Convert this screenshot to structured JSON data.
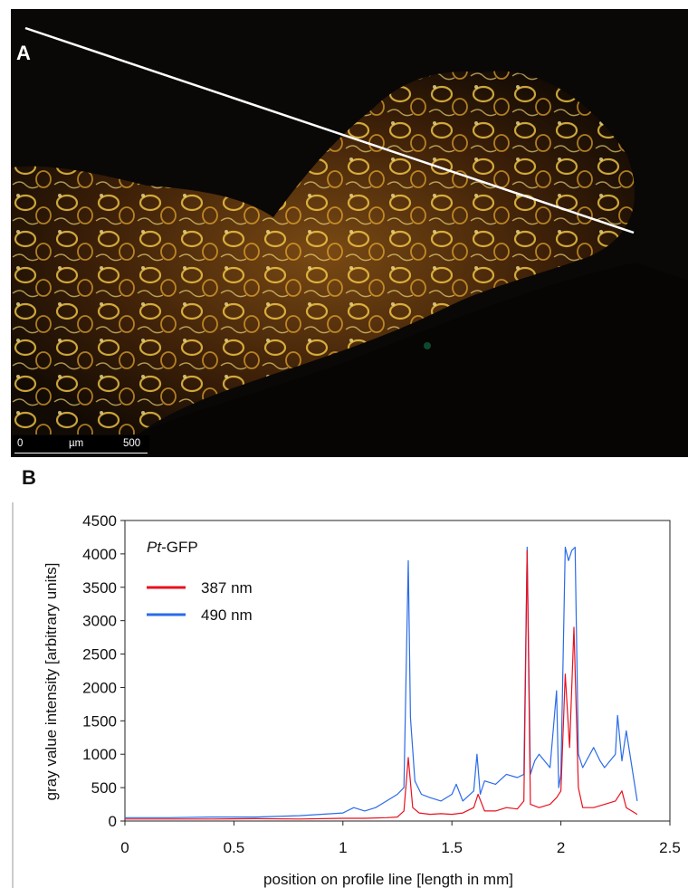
{
  "panel_a": {
    "letter": "A",
    "scale_bar": {
      "start": "0",
      "unit": "µm",
      "end": "500"
    }
  },
  "panel_b": {
    "letter": "B"
  },
  "colors": {
    "series_387": "#e8101e",
    "series_490": "#2a6be8",
    "profile_line": "#ffffff"
  },
  "chart_data": {
    "type": "line",
    "annotation": "Pt-GFP",
    "annotation_italic_part": "Pt",
    "annotation_rest": "-GFP",
    "xlabel": "position on profile line  [length in mm]",
    "ylabel": "gray value intensity [arbitrary units]",
    "xlim": [
      0,
      2.5
    ],
    "ylim": [
      0,
      4500
    ],
    "xticks": [
      0,
      0.5,
      1,
      1.5,
      2,
      2.5
    ],
    "xtick_labels": [
      "0",
      "0.5",
      "1",
      "1.5",
      "2",
      "2.5"
    ],
    "yticks": [
      0,
      500,
      1000,
      1500,
      2000,
      2500,
      3000,
      3500,
      4000,
      4500
    ],
    "ytick_labels": [
      "0",
      "500",
      "1000",
      "1500",
      "2000",
      "2500",
      "3000",
      "3500",
      "4000",
      "4500"
    ],
    "legend_position": "left",
    "series": [
      {
        "name": "387 nm",
        "color": "#e8101e",
        "x": [
          0,
          0.2,
          0.4,
          0.6,
          0.8,
          1.0,
          1.1,
          1.2,
          1.25,
          1.28,
          1.3,
          1.32,
          1.35,
          1.4,
          1.45,
          1.5,
          1.55,
          1.6,
          1.62,
          1.65,
          1.7,
          1.75,
          1.8,
          1.83,
          1.845,
          1.86,
          1.9,
          1.95,
          1.98,
          2.0,
          2.02,
          2.04,
          2.06,
          2.08,
          2.1,
          2.15,
          2.2,
          2.25,
          2.28,
          2.3,
          2.35
        ],
        "y": [
          30,
          30,
          30,
          35,
          30,
          40,
          40,
          50,
          60,
          150,
          950,
          200,
          120,
          100,
          110,
          100,
          120,
          200,
          400,
          150,
          150,
          200,
          180,
          300,
          4050,
          250,
          200,
          250,
          350,
          450,
          2200,
          1100,
          2900,
          500,
          200,
          200,
          250,
          300,
          450,
          200,
          100
        ]
      },
      {
        "name": "490 nm",
        "color": "#2a6be8",
        "x": [
          0,
          0.2,
          0.4,
          0.6,
          0.8,
          1.0,
          1.05,
          1.1,
          1.15,
          1.2,
          1.25,
          1.28,
          1.3,
          1.31,
          1.33,
          1.36,
          1.4,
          1.45,
          1.5,
          1.52,
          1.55,
          1.6,
          1.615,
          1.63,
          1.65,
          1.7,
          1.75,
          1.8,
          1.83,
          1.845,
          1.86,
          1.88,
          1.9,
          1.95,
          1.98,
          1.99,
          2.0,
          2.02,
          2.035,
          2.05,
          2.065,
          2.08,
          2.1,
          2.15,
          2.18,
          2.2,
          2.25,
          2.26,
          2.28,
          2.3,
          2.35
        ],
        "y": [
          50,
          50,
          60,
          60,
          80,
          120,
          200,
          150,
          200,
          300,
          400,
          500,
          3900,
          1550,
          600,
          400,
          350,
          300,
          400,
          550,
          300,
          450,
          1000,
          400,
          600,
          550,
          700,
          650,
          700,
          4100,
          700,
          900,
          1000,
          800,
          1950,
          500,
          700,
          4100,
          3900,
          4050,
          4100,
          1000,
          800,
          1100,
          900,
          800,
          1000,
          1580,
          900,
          1350,
          300
        ]
      }
    ]
  }
}
